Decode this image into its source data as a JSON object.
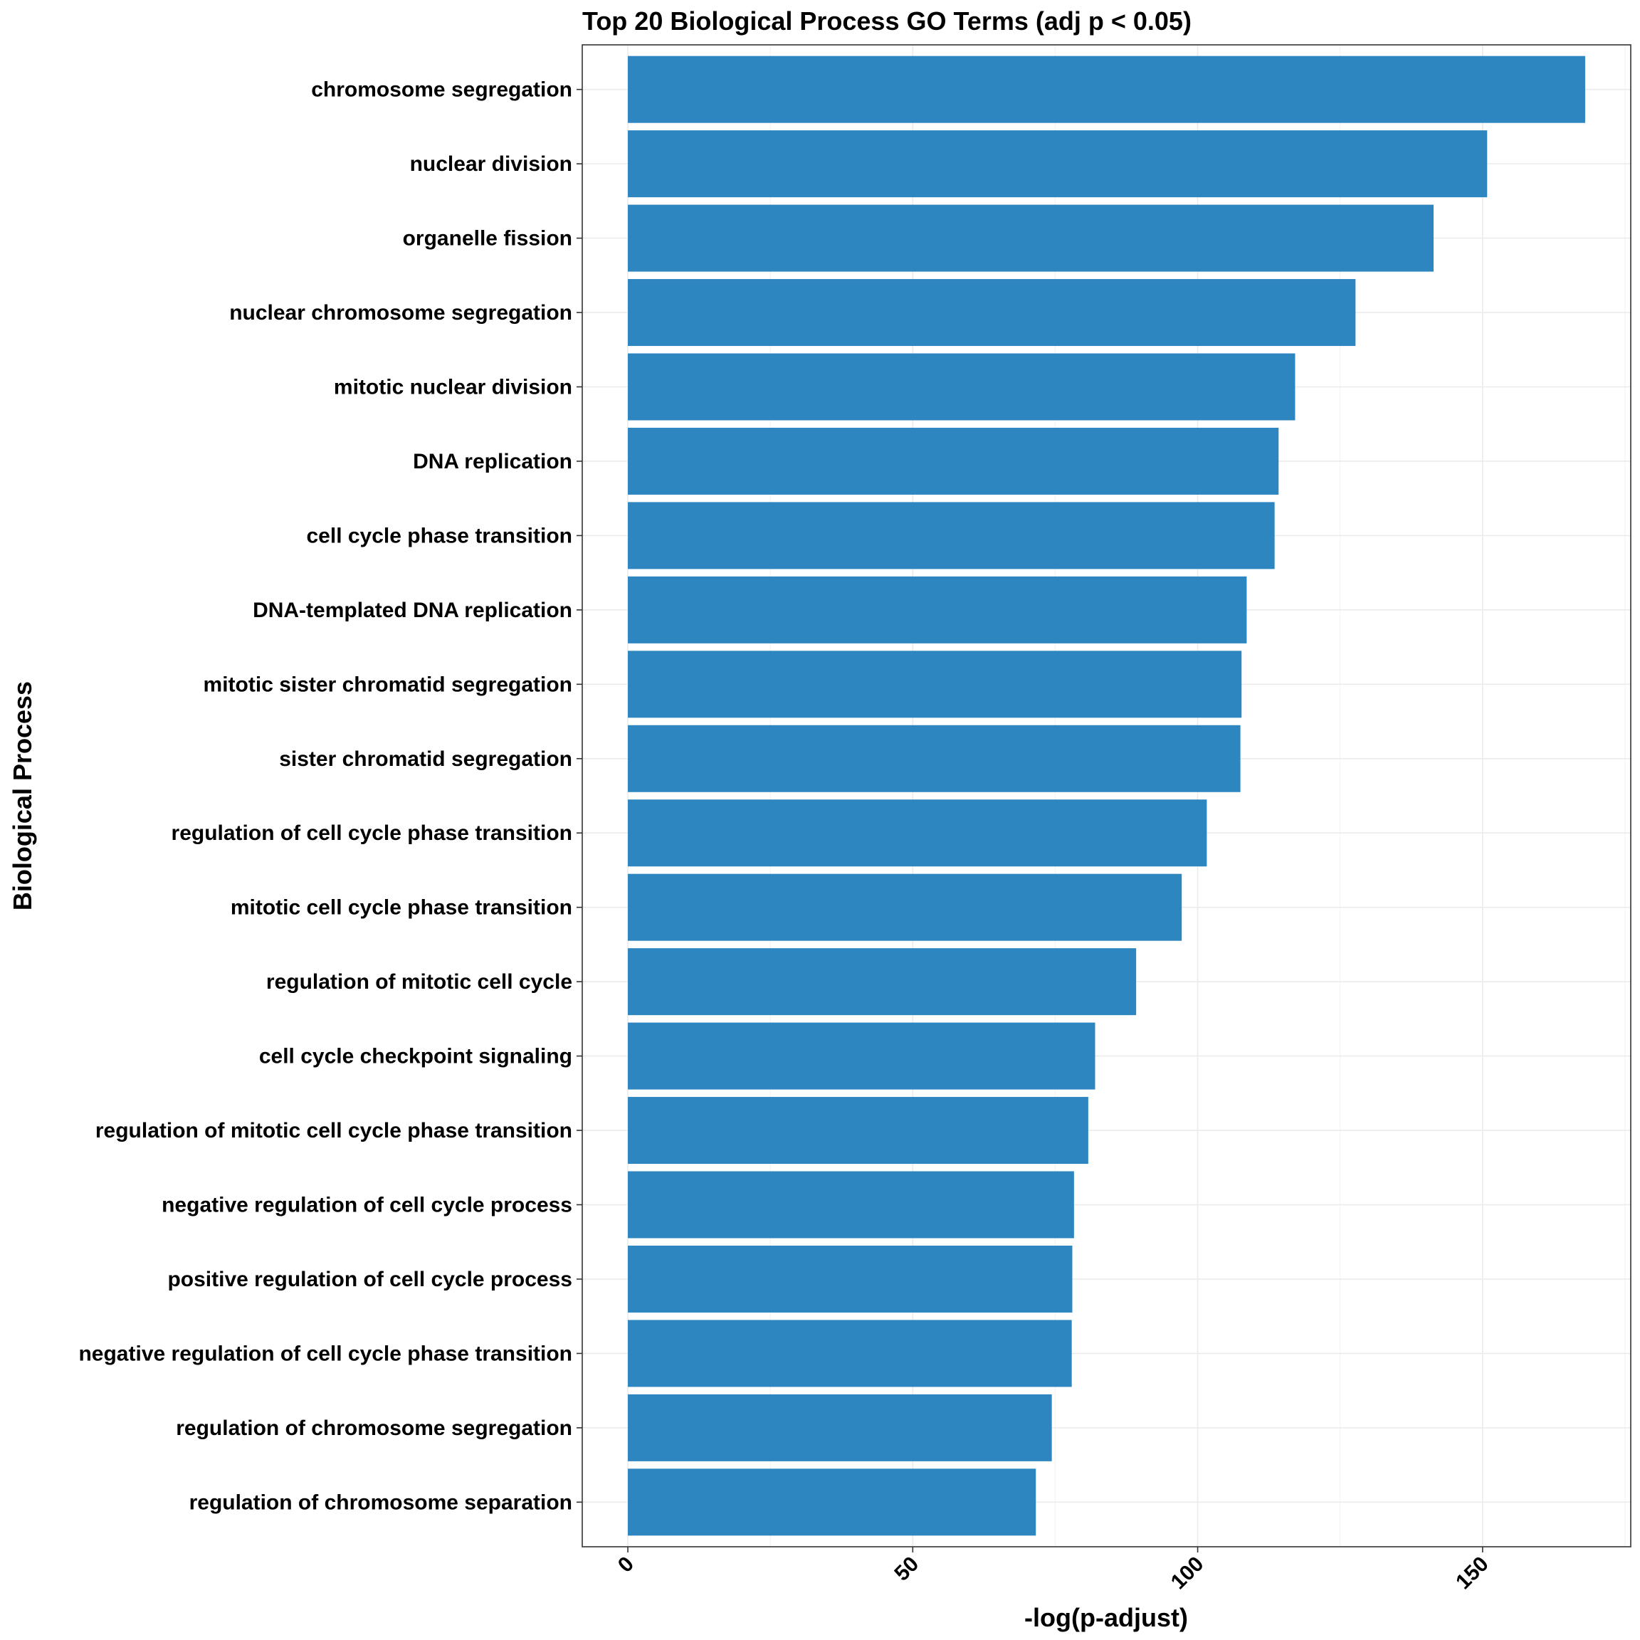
{
  "chart_data": {
    "type": "bar",
    "orientation": "horizontal",
    "title": "Top 20 Biological Process GO Terms (adj p < 0.05)",
    "xlabel": "-log(p-adjust)",
    "ylabel": "Biological Process",
    "xlim": [
      -8,
      176
    ],
    "xticks": [
      0,
      50,
      100,
      150
    ],
    "grid": true,
    "bar_color": "#2E86C1",
    "categories": [
      "chromosome segregation",
      "nuclear division",
      "organelle fission",
      "nuclear chromosome segregation",
      "mitotic nuclear division",
      "DNA replication",
      "cell cycle phase transition",
      "DNA-templated DNA replication",
      "mitotic sister chromatid segregation",
      "sister chromatid segregation",
      "regulation of cell cycle phase transition",
      "mitotic cell cycle phase transition",
      "regulation of mitotic cell cycle",
      "cell cycle checkpoint signaling",
      "regulation of mitotic cell cycle phase transition",
      "negative regulation of cell cycle process",
      "positive regulation of cell cycle process",
      "negative regulation of cell cycle phase transition",
      "regulation of chromosome segregation",
      "regulation of chromosome separation"
    ],
    "values": [
      168.0,
      150.8,
      141.4,
      127.7,
      117.1,
      114.2,
      113.5,
      108.6,
      107.7,
      107.5,
      101.6,
      97.2,
      89.2,
      82.0,
      80.8,
      78.3,
      78.0,
      77.9,
      74.4,
      71.6
    ]
  }
}
